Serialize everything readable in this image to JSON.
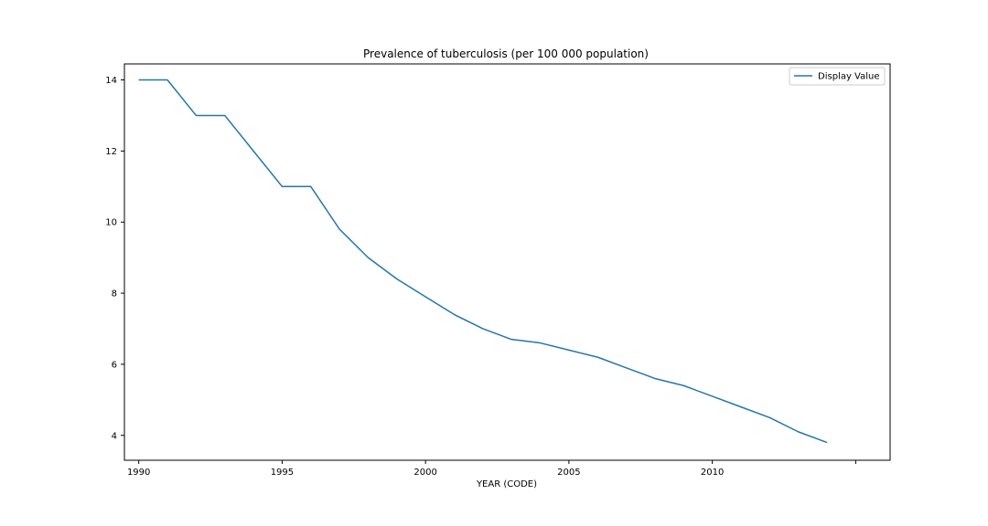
{
  "chart_data": {
    "type": "line",
    "title": "Prevalence of tuberculosis (per 100 000 population)",
    "xlabel": "YEAR (CODE)",
    "ylabel": "",
    "xlim": [
      1989.5,
      2016.2
    ],
    "ylim": [
      3.3,
      14.45
    ],
    "xticks": [
      1990,
      1995,
      2000,
      2005,
      2010
    ],
    "extra_xticks": [
      2015
    ],
    "yticks": [
      4,
      6,
      8,
      10,
      12,
      14
    ],
    "grid": false,
    "legend_position": "top-right",
    "line_color": "#1f77b4",
    "x": [
      1990,
      1991,
      1992,
      1993,
      1994,
      1995,
      1996,
      1997,
      1998,
      1999,
      2000,
      2001,
      2002,
      2003,
      2004,
      2005,
      2006,
      2007,
      2008,
      2009,
      2010,
      2011,
      2012,
      2013,
      2014
    ],
    "series": [
      {
        "name": "Display Value",
        "values": [
          14,
          14,
          13,
          13,
          12,
          11,
          11,
          9.8,
          9,
          8.4,
          7.9,
          7.4,
          7,
          6.7,
          6.6,
          6.4,
          6.2,
          5.9,
          5.6,
          5.4,
          5.1,
          4.8,
          4.5,
          4.1,
          3.8
        ]
      }
    ]
  }
}
